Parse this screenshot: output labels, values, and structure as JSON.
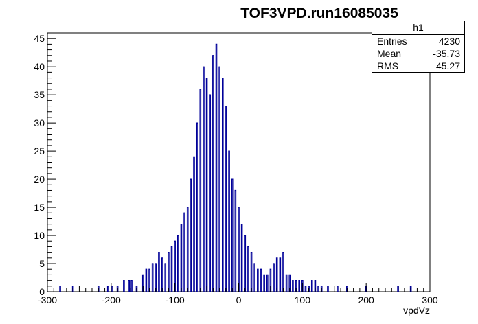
{
  "chart_data": {
    "type": "bar",
    "title": "TOF3VPD.run16085035",
    "xlabel": "vpdVz",
    "ylabel": "",
    "xlim": [
      -300,
      300
    ],
    "ylim": [
      0,
      46
    ],
    "bin_width": 1.5,
    "x_ticks": [
      -300,
      -200,
      -100,
      0,
      100,
      200,
      300
    ],
    "x_tick_labels": [
      "-300",
      "-200",
      "-100",
      "0",
      "100",
      "200",
      "300"
    ],
    "y_ticks": [
      0,
      5,
      10,
      15,
      20,
      25,
      30,
      35,
      40,
      45
    ],
    "y_tick_labels": [
      "0",
      "5",
      "10",
      "15",
      "20",
      "25",
      "30",
      "35",
      "40",
      "45"
    ],
    "line_color": "#000099",
    "stats": {
      "name": "h1",
      "rows": [
        {
          "label": "Entries",
          "value": "4230"
        },
        {
          "label": "Mean",
          "value": "-35.73"
        },
        {
          "label": "RMS",
          "value": "45.27"
        }
      ]
    },
    "series": [
      {
        "x": [
          -280,
          -260,
          -220,
          -205,
          -198,
          -190,
          -180,
          -172,
          -168,
          -160,
          -150,
          -145,
          -140,
          -135,
          -130,
          -125,
          -120,
          -115,
          -110,
          -105,
          -100,
          -95,
          -90,
          -85,
          -80,
          -75,
          -70,
          -65,
          -60,
          -55,
          -50,
          -45,
          -40,
          -35,
          -30,
          -25,
          -20,
          -15,
          -10,
          -5,
          0,
          5,
          10,
          15,
          20,
          25,
          30,
          35,
          40,
          45,
          50,
          55,
          60,
          65,
          70,
          75,
          80,
          85,
          90,
          95,
          100,
          105,
          110,
          115,
          120,
          125,
          130,
          140,
          155,
          170,
          200,
          250,
          270
        ],
        "values": [
          1,
          1,
          1,
          1,
          1,
          1,
          2,
          2,
          2,
          1,
          3,
          4,
          4,
          5,
          5,
          7,
          6,
          5,
          7,
          8,
          9,
          10,
          12,
          14,
          15,
          20,
          24,
          30,
          36,
          40,
          38,
          35,
          42,
          44,
          40,
          38,
          33,
          25,
          20,
          18,
          15,
          12,
          10,
          8,
          7,
          5,
          4,
          4,
          3,
          3,
          4,
          5,
          6,
          6,
          7,
          3,
          3,
          2,
          2,
          2,
          2,
          1,
          1,
          2,
          2,
          1,
          1,
          1,
          1,
          1,
          1,
          1,
          1
        ]
      }
    ]
  }
}
